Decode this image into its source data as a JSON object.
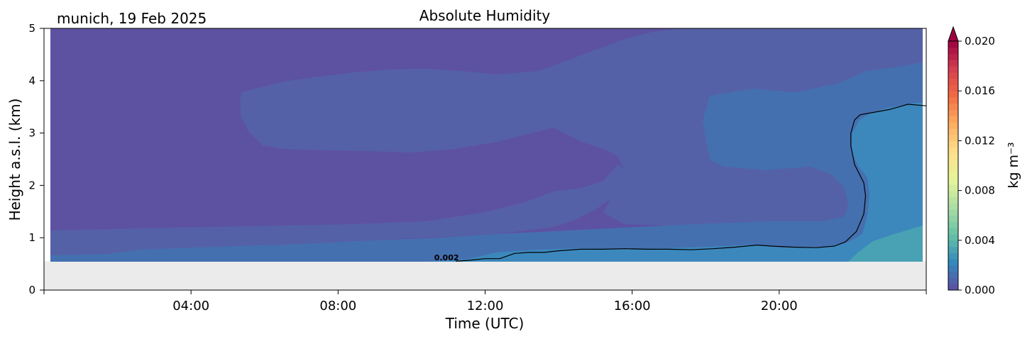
{
  "chart_data": {
    "type": "heatmap",
    "title": "Absolute Humidity",
    "subtitle": "munich, 19 Feb 2025",
    "xlabel": "Time (UTC)",
    "ylabel": "Height a.s.l. (km)",
    "xlim_hours": [
      0,
      24
    ],
    "ylim_km": [
      0,
      5
    ],
    "x_ticks": [
      {
        "hour": 4,
        "label": "04:00"
      },
      {
        "hour": 8,
        "label": "08:00"
      },
      {
        "hour": 12,
        "label": "12:00"
      },
      {
        "hour": 16,
        "label": "16:00"
      },
      {
        "hour": 20,
        "label": "20:00"
      }
    ],
    "y_ticks": [
      {
        "km": 0,
        "label": "0"
      },
      {
        "km": 1,
        "label": "1"
      },
      {
        "km": 2,
        "label": "2"
      },
      {
        "km": 3,
        "label": "3"
      },
      {
        "km": 4,
        "label": "4"
      },
      {
        "km": 5,
        "label": "5"
      }
    ],
    "no_data_below_km": 0.55,
    "no_data_color": "#ebebeb",
    "colorbar": {
      "label": "kg m⁻³",
      "min": 0.0,
      "max": 0.02,
      "extend": "max",
      "colormap": "Spectral_r",
      "ticks": [
        {
          "value": 0.0,
          "label": "0.000"
        },
        {
          "value": 0.004,
          "label": "0.004"
        },
        {
          "value": 0.008,
          "label": "0.008"
        },
        {
          "value": 0.012,
          "label": "0.012"
        },
        {
          "value": 0.016,
          "label": "0.016"
        },
        {
          "value": 0.02,
          "label": "0.020"
        }
      ]
    },
    "contour": {
      "level": 0.002,
      "label": "0.002",
      "label_position": {
        "hour": 11.0,
        "km": 0.62
      },
      "points": [
        [
          11.2,
          0.55
        ],
        [
          11.6,
          0.57
        ],
        [
          12.0,
          0.6
        ],
        [
          12.4,
          0.6
        ],
        [
          12.8,
          0.7
        ],
        [
          13.2,
          0.72
        ],
        [
          13.6,
          0.72
        ],
        [
          14.0,
          0.75
        ],
        [
          14.6,
          0.78
        ],
        [
          15.2,
          0.78
        ],
        [
          15.8,
          0.79
        ],
        [
          16.4,
          0.78
        ],
        [
          17.0,
          0.78
        ],
        [
          17.6,
          0.77
        ],
        [
          18.2,
          0.79
        ],
        [
          18.8,
          0.82
        ],
        [
          19.4,
          0.86
        ],
        [
          19.8,
          0.84
        ],
        [
          20.4,
          0.82
        ],
        [
          21.0,
          0.81
        ],
        [
          21.5,
          0.84
        ],
        [
          21.8,
          0.92
        ],
        [
          22.1,
          1.12
        ],
        [
          22.3,
          1.45
        ],
        [
          22.35,
          1.8
        ],
        [
          22.3,
          2.05
        ],
        [
          22.05,
          2.4
        ],
        [
          21.95,
          2.75
        ],
        [
          21.95,
          3.0
        ],
        [
          22.05,
          3.25
        ],
        [
          22.2,
          3.35
        ],
        [
          22.6,
          3.4
        ],
        [
          23.0,
          3.45
        ],
        [
          23.5,
          3.55
        ],
        [
          24.0,
          3.52
        ]
      ]
    },
    "regions": [
      {
        "name": "background 0.000-0.001",
        "value": 0.0005,
        "color": "#5d52a2"
      },
      {
        "name": "upper layer 0.001-0.0015",
        "value": 0.0012,
        "color": "#5561a7"
      },
      {
        "name": "near-surface 0.0015-0.002",
        "value": 0.0018,
        "color": "#4570b0"
      },
      {
        "name": "moist above 0.002",
        "value": 0.0025,
        "color": "#3c88bc"
      },
      {
        "name": "moist 0.003-0.004",
        "value": 0.0033,
        "color": "#48a2b3"
      }
    ]
  }
}
